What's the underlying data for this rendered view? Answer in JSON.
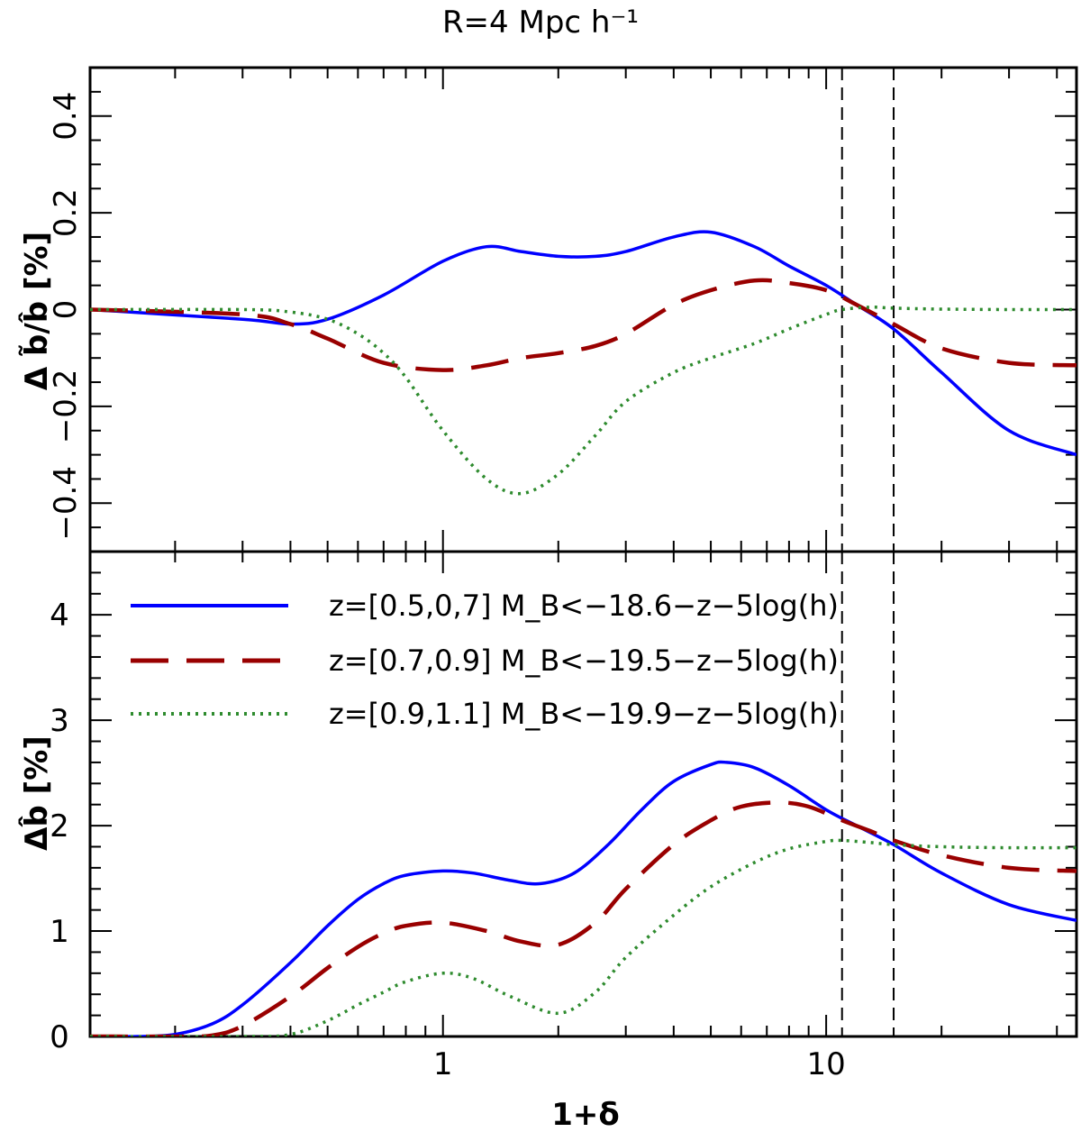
{
  "chart_data": [
    {
      "type": "line",
      "panel": "top",
      "title": "R=4 Mpc h⁻¹",
      "ylabel": "Δ b̃/b̂ [%]",
      "xlabel": "1+δ",
      "xscale": "log",
      "xlim": [
        0.12,
        45
      ],
      "ylim": [
        -0.5,
        0.5
      ],
      "yticks": [
        -0.4,
        -0.2,
        0,
        0.2,
        0.4
      ],
      "ytick_labels": [
        "−0.4",
        "−0.2",
        "0",
        "0.2",
        "0.4"
      ],
      "vlines": [
        11,
        15
      ],
      "series": [
        {
          "name": "z=[0.5,0,7] M_B<−18.6−z−5log(h)",
          "color": "#0000ff",
          "dash": "solid",
          "x": [
            0.12,
            0.3,
            0.4,
            0.5,
            0.7,
            1.0,
            1.3,
            1.6,
            2.0,
            2.5,
            3.0,
            4.0,
            5.0,
            6.5,
            8.0,
            10.0,
            12.0,
            15.0,
            20.0,
            30.0,
            45.0
          ],
          "y": [
            0,
            -0.02,
            -0.03,
            -0.02,
            0.03,
            0.1,
            0.13,
            0.12,
            0.11,
            0.11,
            0.12,
            0.15,
            0.16,
            0.13,
            0.09,
            0.05,
            0.01,
            -0.04,
            -0.13,
            -0.25,
            -0.3
          ]
        },
        {
          "name": "z=[0.7,0.9] M_B<−19.5−z−5log(h)",
          "color": "#990000",
          "dash": "long",
          "x": [
            0.12,
            0.3,
            0.4,
            0.5,
            0.7,
            1.0,
            1.3,
            1.6,
            2.0,
            2.5,
            3.0,
            4.0,
            5.0,
            6.5,
            8.0,
            10.0,
            12.0,
            15.0,
            20.0,
            30.0,
            45.0
          ],
          "y": [
            0,
            -0.01,
            -0.03,
            -0.06,
            -0.11,
            -0.125,
            -0.115,
            -0.1,
            -0.09,
            -0.075,
            -0.05,
            0.01,
            0.04,
            0.06,
            0.055,
            0.04,
            0.01,
            -0.03,
            -0.08,
            -0.11,
            -0.115
          ]
        },
        {
          "name": "z=[0.9,1.1] M_B<−19.9−z−5log(h)",
          "color": "#2e8b2e",
          "dash": "dotted",
          "x": [
            0.12,
            0.3,
            0.4,
            0.5,
            0.6,
            0.7,
            0.8,
            1.0,
            1.3,
            1.6,
            2.0,
            2.5,
            3.0,
            4.0,
            5.0,
            6.5,
            8.0,
            10.0,
            11.0,
            13.0,
            15.0,
            20.0,
            30.0,
            45.0
          ],
          "y": [
            0,
            0,
            -0.005,
            -0.02,
            -0.05,
            -0.09,
            -0.14,
            -0.25,
            -0.35,
            -0.38,
            -0.34,
            -0.26,
            -0.19,
            -0.13,
            -0.1,
            -0.07,
            -0.04,
            -0.01,
            0,
            0.005,
            0.003,
            0.001,
            0,
            0
          ]
        }
      ]
    },
    {
      "type": "line",
      "panel": "bottom",
      "ylabel": "Δb̂ [%]",
      "xlabel": "1+δ",
      "xscale": "log",
      "xlim": [
        0.12,
        45
      ],
      "ylim": [
        0,
        4.6
      ],
      "yticks": [
        0,
        1,
        2,
        3,
        4
      ],
      "ytick_labels": [
        "0",
        "1",
        "2",
        "3",
        "4"
      ],
      "xticks": [
        1,
        10
      ],
      "xtick_labels": [
        "1",
        "10"
      ],
      "vlines": [
        11,
        15
      ],
      "legend": "top-left",
      "series": [
        {
          "name": "z=[0.5,0,7] M_B<−18.6−z−5log(h)",
          "color": "#0000ff",
          "dash": "solid",
          "x": [
            0.12,
            0.16,
            0.2,
            0.25,
            0.3,
            0.4,
            0.5,
            0.6,
            0.7,
            0.8,
            1.0,
            1.2,
            1.5,
            1.8,
            2.2,
            2.7,
            3.3,
            4.0,
            5.0,
            5.5,
            6.5,
            8.0,
            10.0,
            12.0,
            15.0,
            20.0,
            30.0,
            45.0
          ],
          "y": [
            0,
            0,
            0.02,
            0.12,
            0.3,
            0.7,
            1.05,
            1.3,
            1.45,
            1.53,
            1.57,
            1.55,
            1.48,
            1.45,
            1.55,
            1.82,
            2.15,
            2.42,
            2.58,
            2.6,
            2.55,
            2.38,
            2.15,
            2.0,
            1.82,
            1.55,
            1.25,
            1.1
          ]
        },
        {
          "name": "z=[0.7,0.9] M_B<−19.5−z−5log(h)",
          "color": "#990000",
          "dash": "long",
          "x": [
            0.12,
            0.2,
            0.25,
            0.3,
            0.4,
            0.5,
            0.6,
            0.7,
            0.8,
            1.0,
            1.3,
            1.6,
            2.0,
            2.5,
            3.0,
            4.0,
            5.0,
            6.0,
            7.5,
            9.0,
            11.0,
            13.0,
            15.0,
            20.0,
            30.0,
            45.0
          ],
          "y": [
            0,
            0,
            0.01,
            0.1,
            0.38,
            0.65,
            0.85,
            0.98,
            1.05,
            1.08,
            1.0,
            0.9,
            0.87,
            1.08,
            1.4,
            1.82,
            2.05,
            2.18,
            2.22,
            2.18,
            2.05,
            1.95,
            1.86,
            1.72,
            1.6,
            1.57
          ]
        },
        {
          "name": "z=[0.9,1.1] M_B<−19.9−z−5log(h)",
          "color": "#2e8b2e",
          "dash": "dotted",
          "x": [
            0.12,
            0.3,
            0.4,
            0.5,
            0.6,
            0.7,
            0.8,
            1.0,
            1.2,
            1.5,
            2.0,
            2.5,
            3.0,
            4.0,
            5.0,
            6.5,
            8.0,
            10.0,
            11.0,
            13.0,
            15.0,
            20.0,
            30.0,
            45.0
          ],
          "y": [
            0,
            0,
            0.02,
            0.15,
            0.3,
            0.42,
            0.52,
            0.6,
            0.55,
            0.38,
            0.22,
            0.42,
            0.75,
            1.15,
            1.42,
            1.65,
            1.78,
            1.85,
            1.86,
            1.84,
            1.82,
            1.8,
            1.79,
            1.79
          ]
        }
      ]
    }
  ]
}
